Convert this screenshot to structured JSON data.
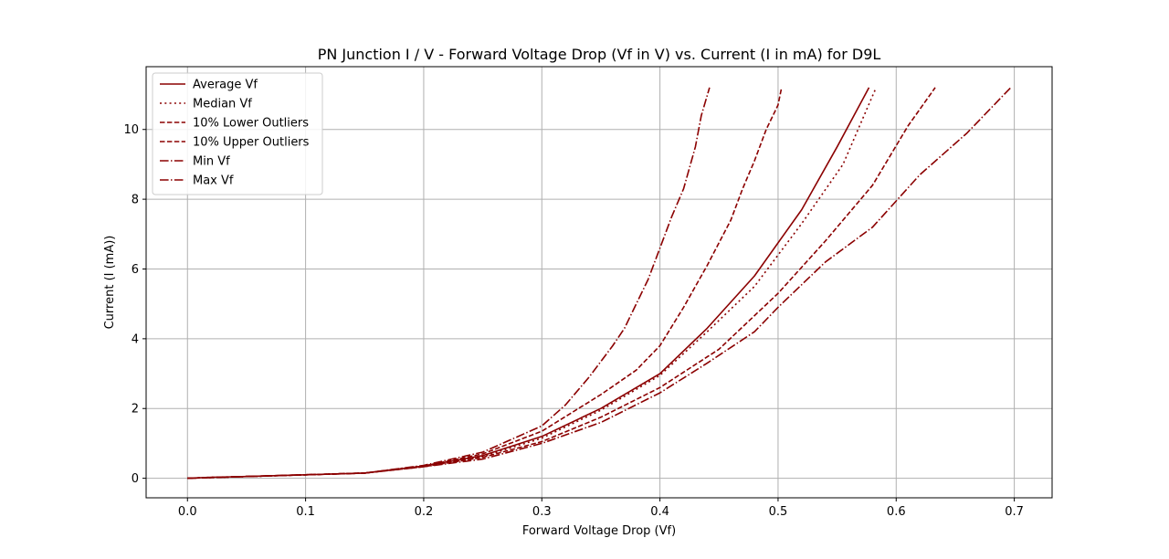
{
  "chart_data": {
    "type": "line",
    "title": "PN Junction I / V - Forward Voltage Drop (Vf in V) vs. Current (I in mA) for D9L",
    "xlabel": "Forward Voltage Drop (Vf)",
    "ylabel": "Current (I (mA))",
    "xlim": [
      -0.035,
      0.732
    ],
    "ylim": [
      -0.56,
      11.8
    ],
    "xticks": [
      "0.0",
      "0.1",
      "0.2",
      "0.3",
      "0.4",
      "0.5",
      "0.6",
      "0.7"
    ],
    "yticks": [
      "0",
      "2",
      "4",
      "6",
      "8",
      "10"
    ],
    "grid": true,
    "legend_position": "top-left",
    "color": "#8b0000",
    "series": [
      {
        "name": "Average Vf",
        "style": "solid",
        "x": [
          0.0,
          0.02,
          0.05,
          0.1,
          0.15,
          0.2,
          0.25,
          0.3,
          0.35,
          0.4,
          0.44,
          0.48,
          0.52,
          0.55,
          0.577
        ],
        "y": [
          0.0,
          0.03,
          0.05,
          0.1,
          0.15,
          0.35,
          0.65,
          1.2,
          2.0,
          3.0,
          4.3,
          5.8,
          7.7,
          9.5,
          11.2
        ]
      },
      {
        "name": "Median Vf",
        "style": "dotted",
        "x": [
          0.0,
          0.02,
          0.05,
          0.1,
          0.15,
          0.2,
          0.25,
          0.3,
          0.35,
          0.4,
          0.44,
          0.48,
          0.52,
          0.555,
          0.583
        ],
        "y": [
          0.0,
          0.03,
          0.05,
          0.1,
          0.15,
          0.35,
          0.62,
          1.15,
          1.95,
          2.95,
          4.2,
          5.5,
          7.3,
          9.0,
          11.2
        ]
      },
      {
        "name": "10% Lower Outliers",
        "style": "dashed",
        "x": [
          0.0,
          0.05,
          0.1,
          0.15,
          0.2,
          0.25,
          0.3,
          0.35,
          0.38,
          0.4,
          0.42,
          0.44,
          0.46,
          0.47,
          0.48,
          0.49,
          0.5,
          0.503
        ],
        "y": [
          0.0,
          0.05,
          0.1,
          0.15,
          0.35,
          0.7,
          1.35,
          2.4,
          3.1,
          3.8,
          4.9,
          6.1,
          7.4,
          8.3,
          9.1,
          10.0,
          10.7,
          11.2
        ]
      },
      {
        "name": "10% Upper Outliers",
        "style": "dashed",
        "x": [
          0.0,
          0.05,
          0.1,
          0.15,
          0.2,
          0.25,
          0.3,
          0.35,
          0.4,
          0.45,
          0.5,
          0.54,
          0.58,
          0.61,
          0.633
        ],
        "y": [
          0.0,
          0.05,
          0.1,
          0.15,
          0.33,
          0.6,
          1.05,
          1.75,
          2.6,
          3.7,
          5.3,
          6.8,
          8.4,
          10.1,
          11.2
        ]
      },
      {
        "name": "Min Vf",
        "style": "dashdot",
        "x": [
          0.0,
          0.05,
          0.1,
          0.15,
          0.2,
          0.25,
          0.3,
          0.32,
          0.34,
          0.36,
          0.37,
          0.38,
          0.39,
          0.4,
          0.41,
          0.42,
          0.43,
          0.435,
          0.442
        ],
        "y": [
          0.0,
          0.05,
          0.1,
          0.15,
          0.37,
          0.75,
          1.5,
          2.1,
          2.9,
          3.8,
          4.3,
          5.0,
          5.7,
          6.6,
          7.5,
          8.3,
          9.5,
          10.4,
          11.2
        ]
      },
      {
        "name": "Max Vf",
        "style": "dashdot",
        "x": [
          0.0,
          0.05,
          0.1,
          0.15,
          0.2,
          0.25,
          0.3,
          0.35,
          0.4,
          0.44,
          0.48,
          0.5,
          0.54,
          0.58,
          0.62,
          0.66,
          0.697
        ],
        "y": [
          0.0,
          0.05,
          0.1,
          0.15,
          0.33,
          0.55,
          1.0,
          1.6,
          2.45,
          3.3,
          4.2,
          4.9,
          6.2,
          7.2,
          8.7,
          9.9,
          11.2
        ]
      }
    ]
  }
}
